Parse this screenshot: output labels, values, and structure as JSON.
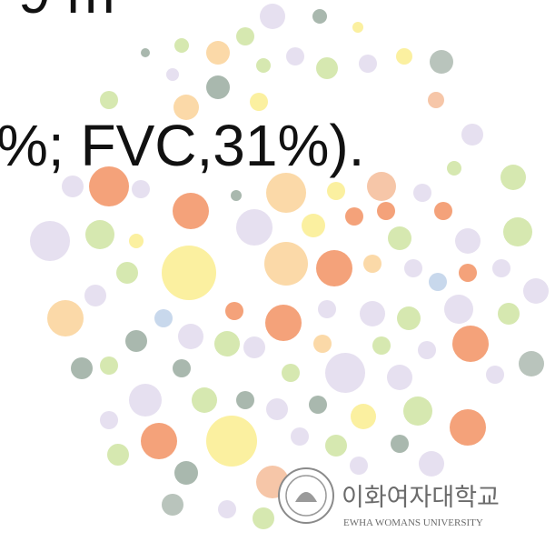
{
  "slide": {
    "text_lines": [
      "9 m",
      "%; FVC,31%)."
    ],
    "logo": {
      "name_ko": "이화여자대학교",
      "name_en": "EWHA WOMANS UNIVERSITY"
    }
  }
}
